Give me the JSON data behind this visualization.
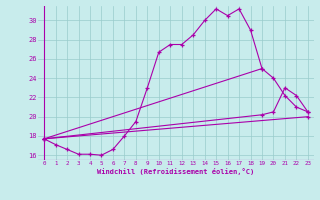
{
  "xlabel": "Windchill (Refroidissement éolien,°C)",
  "bg_color": "#c8ecec",
  "line_color": "#aa00aa",
  "grid_color": "#99cccc",
  "axis_color": "#880088",
  "xlim": [
    -0.5,
    23.5
  ],
  "ylim": [
    15.5,
    31.5
  ],
  "xticks": [
    0,
    1,
    2,
    3,
    4,
    5,
    6,
    7,
    8,
    9,
    10,
    11,
    12,
    13,
    14,
    15,
    16,
    17,
    18,
    19,
    20,
    21,
    22,
    23
  ],
  "yticks": [
    16,
    18,
    20,
    22,
    24,
    26,
    28,
    30
  ],
  "line1_x": [
    0,
    1,
    2,
    3,
    4,
    5,
    6,
    7,
    8,
    9,
    10,
    11,
    12,
    13,
    14,
    15,
    16,
    17,
    18,
    19
  ],
  "line1_y": [
    17.7,
    17.1,
    16.6,
    16.1,
    16.1,
    16.0,
    16.6,
    18.0,
    19.5,
    23.0,
    26.7,
    27.5,
    27.5,
    28.5,
    30.0,
    31.2,
    30.5,
    31.2,
    29.0,
    25.0
  ],
  "line2_x": [
    0,
    19,
    20,
    21,
    22,
    23
  ],
  "line2_y": [
    17.7,
    25.0,
    24.0,
    22.2,
    21.0,
    20.5
  ],
  "line3_x": [
    0,
    19,
    20,
    21,
    22,
    23
  ],
  "line3_y": [
    17.7,
    20.2,
    20.5,
    23.0,
    22.2,
    20.5
  ],
  "line4_x": [
    0,
    23
  ],
  "line4_y": [
    17.7,
    20.0
  ]
}
